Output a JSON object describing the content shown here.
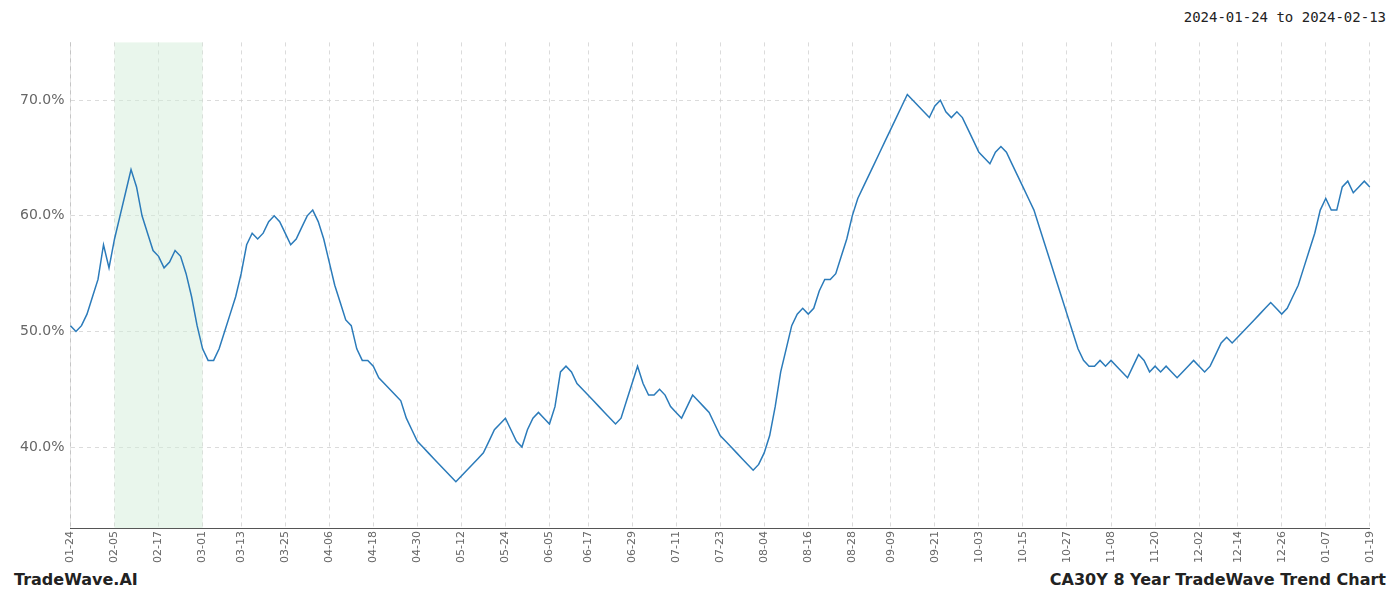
{
  "chart_data": {
    "type": "line",
    "title": "CA30Y 8 Year TradeWave Trend Chart",
    "subtitle": "2024-01-24 to 2024-02-13",
    "annotations": [
      "TradeWave.AI"
    ],
    "categories": [
      "01-24",
      null,
      null,
      null,
      null,
      null,
      null,
      null,
      "02-05",
      null,
      null,
      null,
      null,
      null,
      null,
      null,
      "02-17",
      null,
      null,
      null,
      null,
      null,
      null,
      null,
      "03-01",
      null,
      null,
      null,
      null,
      null,
      null,
      "03-13",
      null,
      null,
      null,
      null,
      null,
      null,
      null,
      "03-25",
      null,
      null,
      null,
      null,
      null,
      null,
      null,
      "04-06",
      null,
      null,
      null,
      null,
      null,
      null,
      null,
      "04-18",
      null,
      null,
      null,
      null,
      null,
      null,
      null,
      "04-30",
      null,
      null,
      null,
      null,
      null,
      null,
      null,
      "05-12",
      null,
      null,
      null,
      null,
      null,
      null,
      null,
      "05-24",
      null,
      null,
      null,
      null,
      null,
      null,
      null,
      "06-05",
      null,
      null,
      null,
      null,
      null,
      null,
      "06-17",
      null,
      null,
      null,
      null,
      null,
      null,
      null,
      "06-29",
      null,
      null,
      null,
      null,
      null,
      null,
      null,
      "07-11",
      null,
      null,
      null,
      null,
      null,
      null,
      null,
      "07-23",
      null,
      null,
      null,
      null,
      null,
      null,
      null,
      "08-04",
      null,
      null,
      null,
      null,
      null,
      null,
      null,
      "08-16",
      null,
      null,
      null,
      null,
      null,
      null,
      null,
      "08-28",
      null,
      null,
      null,
      null,
      null,
      null,
      "09-09",
      null,
      null,
      null,
      null,
      null,
      null,
      null,
      "09-21",
      null,
      null,
      null,
      null,
      null,
      null,
      null,
      "10-03",
      null,
      null,
      null,
      null,
      null,
      null,
      null,
      "10-15",
      null,
      null,
      null,
      null,
      null,
      null,
      null,
      "10-27",
      null,
      null,
      null,
      null,
      null,
      null,
      null,
      "11-08",
      null,
      null,
      null,
      null,
      null,
      null,
      null,
      "11-20",
      null,
      null,
      null,
      null,
      null,
      null,
      null,
      "12-02",
      null,
      null,
      null,
      null,
      null,
      null,
      "12-14",
      null,
      null,
      null,
      null,
      null,
      null,
      null,
      "12-26",
      null,
      null,
      null,
      null,
      null,
      null,
      null,
      "01-07",
      null,
      null,
      null,
      null,
      null,
      null,
      null,
      "01-19"
    ],
    "values": [
      50.5,
      50.0,
      50.5,
      51.5,
      53.0,
      54.5,
      57.5,
      55.5,
      58.0,
      60.0,
      62.0,
      64.0,
      62.5,
      60.0,
      58.5,
      57.0,
      56.5,
      55.5,
      56.0,
      57.0,
      56.5,
      55.0,
      53.0,
      50.5,
      48.5,
      47.5,
      47.5,
      48.5,
      50.0,
      51.5,
      53.0,
      55.0,
      57.5,
      58.5,
      58.0,
      58.5,
      59.5,
      60.0,
      59.5,
      58.5,
      57.5,
      58.0,
      59.0,
      60.0,
      60.5,
      59.5,
      58.0,
      56.0,
      54.0,
      52.5,
      51.0,
      50.5,
      48.5,
      47.5,
      47.5,
      47.0,
      46.0,
      45.5,
      45.0,
      44.5,
      44.0,
      42.5,
      41.5,
      40.5,
      40.0,
      39.5,
      39.0,
      38.5,
      38.0,
      37.5,
      37.0,
      37.5,
      38.0,
      38.5,
      39.0,
      39.5,
      40.5,
      41.5,
      42.0,
      42.5,
      41.5,
      40.5,
      40.0,
      41.5,
      42.5,
      43.0,
      42.5,
      42.0,
      43.5,
      46.5,
      47.0,
      46.5,
      45.5,
      45.0,
      44.5,
      44.0,
      43.5,
      43.0,
      42.5,
      42.0,
      42.5,
      44.0,
      45.5,
      47.0,
      45.5,
      44.5,
      44.5,
      45.0,
      44.5,
      43.5,
      43.0,
      42.5,
      43.5,
      44.5,
      44.0,
      43.5,
      43.0,
      42.0,
      41.0,
      40.5,
      40.0,
      39.5,
      39.0,
      38.5,
      38.0,
      38.5,
      39.5,
      41.0,
      43.5,
      46.5,
      48.5,
      50.5,
      51.5,
      52.0,
      51.5,
      52.0,
      53.5,
      54.5,
      54.5,
      55.0,
      56.5,
      58.0,
      60.0,
      61.5,
      62.5,
      63.5,
      64.5,
      65.5,
      66.5,
      67.5,
      68.5,
      69.5,
      70.5,
      70.0,
      69.5,
      69.0,
      68.5,
      69.5,
      70.0,
      69.0,
      68.5,
      69.0,
      68.5,
      67.5,
      66.5,
      65.5,
      65.0,
      64.5,
      65.5,
      66.0,
      65.5,
      64.5,
      63.5,
      62.5,
      61.5,
      60.5,
      59.0,
      57.5,
      56.0,
      54.5,
      53.0,
      51.5,
      50.0,
      48.5,
      47.5,
      47.0,
      47.0,
      47.5,
      47.0,
      47.5,
      47.0,
      46.5,
      46.0,
      47.0,
      48.0,
      47.5,
      46.5,
      47.0,
      46.5,
      47.0,
      46.5,
      46.0,
      46.5,
      47.0,
      47.5,
      47.0,
      46.5,
      47.0,
      48.0,
      49.0,
      49.5,
      49.0,
      49.5,
      50.0,
      50.5,
      51.0,
      51.5,
      52.0,
      52.5,
      52.0,
      51.5,
      52.0,
      53.0,
      54.0,
      55.5,
      57.0,
      58.5,
      60.5,
      61.5,
      60.5,
      60.5,
      62.5,
      63.0,
      62.0,
      62.5,
      63.0,
      62.5
    ],
    "color": "#2b7bba",
    "ylim": [
      33.0,
      75.0
    ],
    "yticks": [
      {
        "value": 40.0,
        "label": "40.0%"
      },
      {
        "value": 50.0,
        "label": "50.0%"
      },
      {
        "value": 60.0,
        "label": "60.0%"
      },
      {
        "value": 70.0,
        "label": "70.0%"
      }
    ],
    "grid": true,
    "spans": [
      {
        "start": "02-05",
        "end": "03-01",
        "color": "#d4edda"
      }
    ]
  }
}
